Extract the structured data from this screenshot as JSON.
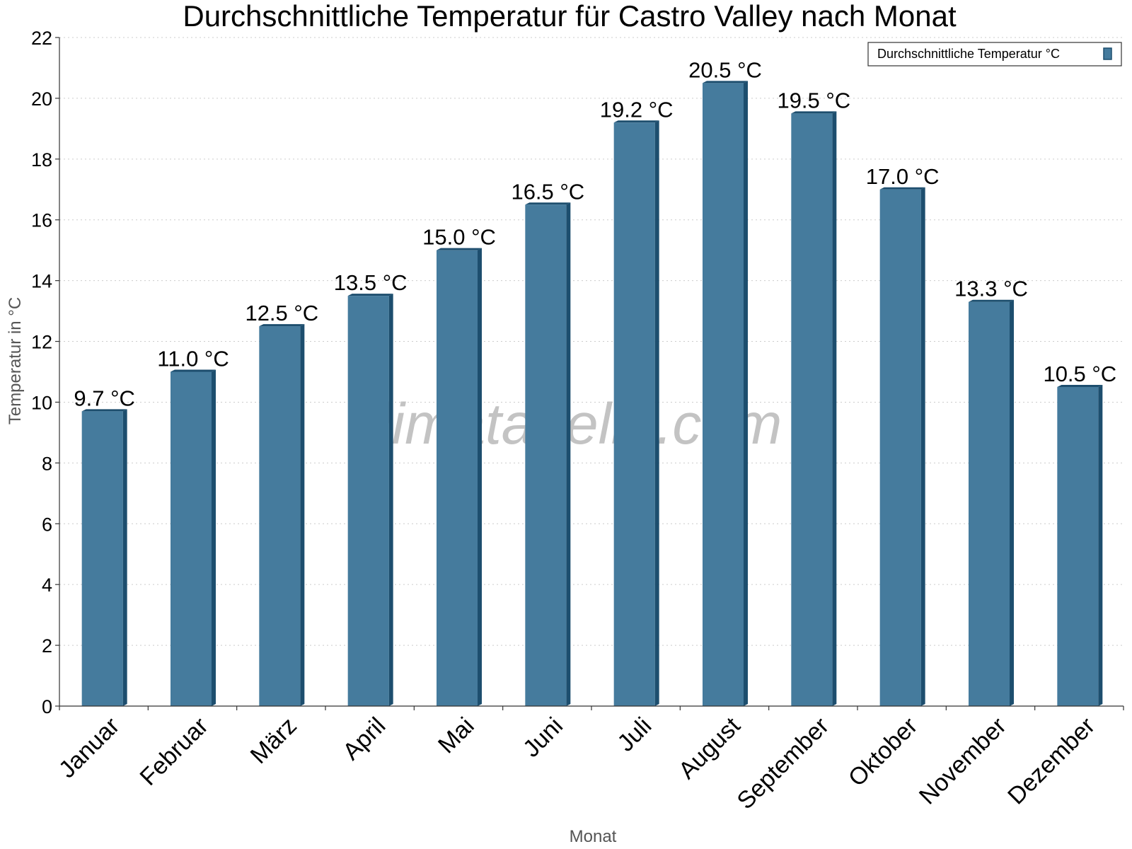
{
  "chart_data": {
    "type": "bar",
    "title": "Durchschnittliche Temperatur für Castro Valley nach Monat",
    "xlabel": "Monat",
    "ylabel": "Temperatur in °C",
    "categories": [
      "Januar",
      "Februar",
      "März",
      "April",
      "Mai",
      "Juni",
      "Juli",
      "August",
      "September",
      "Oktober",
      "November",
      "Dezember"
    ],
    "series": [
      {
        "name": "Durchschnittliche Temperatur °C",
        "values": [
          9.7,
          11.0,
          12.5,
          13.5,
          15.0,
          16.5,
          19.2,
          20.5,
          19.5,
          17.0,
          13.3,
          10.5
        ],
        "labels": [
          "9.7 °C",
          "11.0 °C",
          "12.5 °C",
          "13.5 °C",
          "15.0 °C",
          "16.5 °C",
          "19.2 °C",
          "20.5 °C",
          "19.5 °C",
          "17.0 °C",
          "13.3 °C",
          "10.5 °C"
        ]
      }
    ],
    "ylim": [
      0,
      22
    ],
    "yticks": [
      "0",
      "2",
      "4",
      "6",
      "8",
      "10",
      "12",
      "14",
      "16",
      "18",
      "20",
      "22"
    ],
    "grid": true,
    "legend_position": "top-right",
    "colors": {
      "bar": "#457b9d",
      "bar_edge": "#1d4e6e",
      "grid": "#cccccc"
    }
  },
  "watermark": "klimatabelle.com"
}
